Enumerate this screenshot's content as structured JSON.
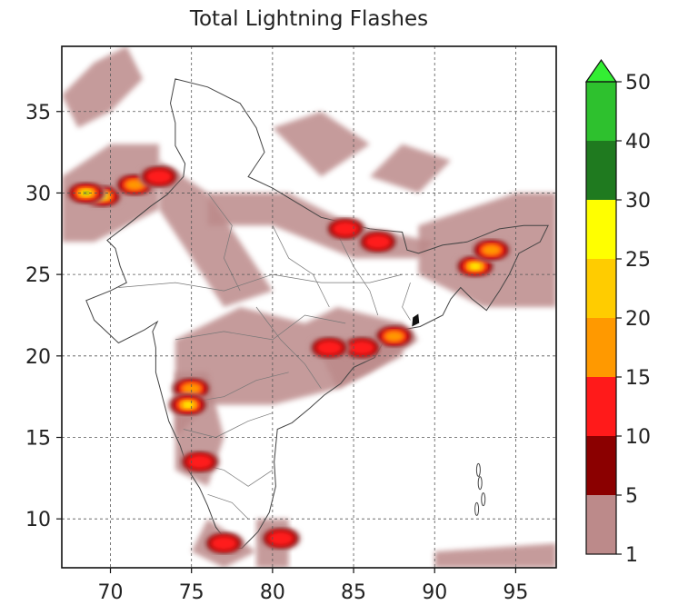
{
  "title": "Total Lightning Flashes",
  "map": {
    "lon_range": [
      67,
      97.5
    ],
    "lat_range": [
      7,
      39
    ],
    "x_ticks": [
      "70",
      "75",
      "80",
      "85",
      "90",
      "95"
    ],
    "y_ticks": [
      "10",
      "15",
      "20",
      "25",
      "30",
      "35"
    ],
    "x_tick_values": [
      70,
      75,
      80,
      85,
      90,
      95
    ],
    "y_tick_values": [
      10,
      15,
      20,
      25,
      30,
      35
    ],
    "grid": "dashed",
    "lightning_clusters": [
      {
        "lon": 69.5,
        "lat": 29.8,
        "level": 25
      },
      {
        "lon": 71.5,
        "lat": 30.5,
        "level": 15
      },
      {
        "lon": 68.5,
        "lat": 30.0,
        "level": 30
      },
      {
        "lon": 73.0,
        "lat": 31.0,
        "level": 10
      },
      {
        "lon": 92.5,
        "lat": 25.5,
        "level": 25
      },
      {
        "lon": 93.5,
        "lat": 26.5,
        "level": 15
      },
      {
        "lon": 75.0,
        "lat": 18.0,
        "level": 15
      },
      {
        "lon": 74.8,
        "lat": 17.0,
        "level": 25
      },
      {
        "lon": 87.5,
        "lat": 21.2,
        "level": 15
      },
      {
        "lon": 85.5,
        "lat": 20.5,
        "level": 10
      },
      {
        "lon": 84.5,
        "lat": 27.8,
        "level": 10
      },
      {
        "lon": 86.5,
        "lat": 27.0,
        "level": 10
      },
      {
        "lon": 80.5,
        "lat": 8.8,
        "level": 10
      },
      {
        "lon": 77.0,
        "lat": 8.5,
        "level": 10
      },
      {
        "lon": 75.5,
        "lat": 13.5,
        "level": 10
      },
      {
        "lon": 83.5,
        "lat": 20.5,
        "level": 10
      }
    ]
  },
  "colorbar": {
    "labels": [
      "1",
      "5",
      "10",
      "15",
      "20",
      "25",
      "30",
      "40",
      "50"
    ],
    "colors": [
      "#bc8a8a",
      "#8b0000",
      "#ff1a1a",
      "#ff9900",
      "#ffcc00",
      "#ffff00",
      "#1f7a1f",
      "#2ec12e",
      "#33ee33"
    ],
    "extend": "max"
  }
}
